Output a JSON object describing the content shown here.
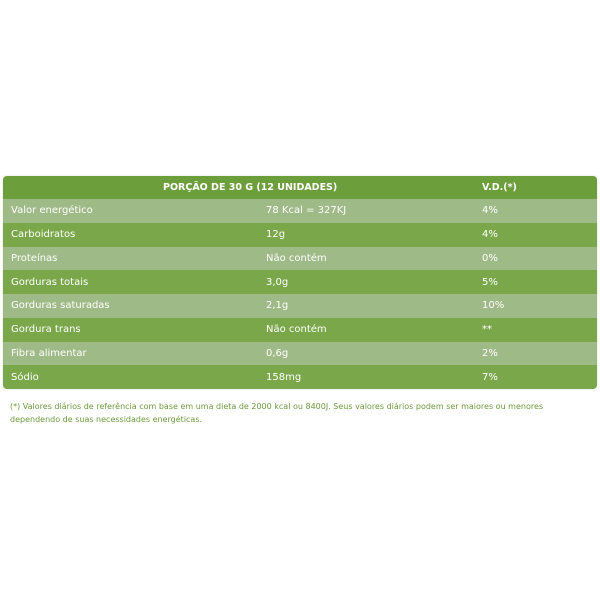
{
  "header": {
    "portion": "PORÇÃO DE 30 G (12 UNIDADES)",
    "vd": "V.D.(*)"
  },
  "rows": [
    {
      "name": "Valor energético",
      "amount": "78 Kcal = 327KJ",
      "vd": "4%"
    },
    {
      "name": "Carboidratos",
      "amount": "12g",
      "vd": "4%"
    },
    {
      "name": "Proteínas",
      "amount": "Não contém",
      "vd": "0%"
    },
    {
      "name": "Gorduras totais",
      "amount": "3,0g",
      "vd": "5%"
    },
    {
      "name": "Gorduras saturadas",
      "amount": "2,1g",
      "vd": "10%"
    },
    {
      "name": "Gordura trans",
      "amount": "Não contém",
      "vd": "**"
    },
    {
      "name": "Fibra alimentar",
      "amount": "0,6g",
      "vd": "2%"
    },
    {
      "name": "Sódio",
      "amount": "158mg",
      "vd": "7%"
    }
  ],
  "footnote": "(*) Valores diários de referência com base em uma dieta de 2000 kcal ou 8400J. Seus valores diários podem ser maiores ou menores dependendo de suas necessidades energéticas."
}
